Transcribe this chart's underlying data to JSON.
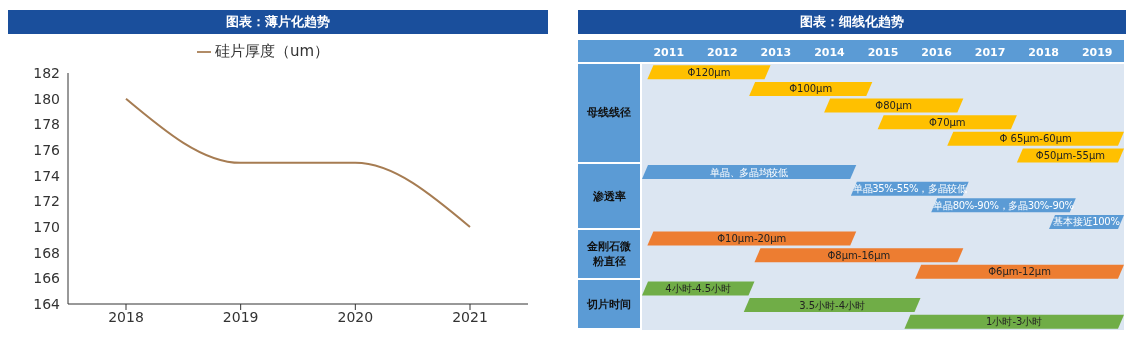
{
  "chart_data": [
    {
      "type": "line",
      "title": "图表：薄片化趋势",
      "categories": [
        "2018",
        "2019",
        "2020",
        "2021"
      ],
      "series": [
        {
          "name": "硅片厚度（um）",
          "color": "#a67c52",
          "values": [
            180,
            175,
            175,
            170
          ]
        }
      ],
      "ylim": [
        164,
        182
      ],
      "yticks": [
        164,
        166,
        168,
        170,
        172,
        174,
        176,
        178,
        180,
        182
      ],
      "legend": "top",
      "marker": "none",
      "line_style": "solid"
    },
    {
      "type": "bar",
      "title": "图表：细线化趋势",
      "orientation": "horizontal",
      "categories": [
        "Φ120μm",
        "Φ100μm",
        "Φ80μm",
        "Φ70μm",
        "Φ 65μm-60μm",
        "Φ50μm-55μm",
        "单晶、多晶均较低",
        "单晶35%-55%，多晶较低",
        "单晶80%-90%，多晶30%-90%",
        "基本接近100%",
        "Φ10μm-20μm",
        "Φ8μm-16μm",
        "Φ6μm-12μm",
        "4小时-4.5小时",
        "3.5小时-4小时",
        "1小时-3小时"
      ],
      "base": [
        2011.1,
        2013.0,
        2014.4,
        2015.4,
        2016.7,
        2018.0,
        2011.0,
        2014.9,
        2016.4,
        2018.6,
        2011.1,
        2013.1,
        2016.1,
        2011.0,
        2012.9,
        2015.9
      ],
      "values": [
        2.3,
        2.3,
        2.6,
        2.6,
        3.3,
        2.0,
        4.0,
        2.2,
        2.7,
        1.4,
        3.9,
        3.9,
        3.9,
        2.1,
        3.3,
        4.1
      ],
      "colors": [
        "#ffc000",
        "#ffc000",
        "#ffc000",
        "#ffc000",
        "#ffc000",
        "#ffc000",
        "#5b9bd5",
        "#5b9bd5",
        "#5b9bd5",
        "#5b9bd5",
        "#ed7d31",
        "#ed7d31",
        "#ed7d31",
        "#70ad47",
        "#70ad47",
        "#70ad47"
      ],
      "xlim": [
        2011,
        2020
      ],
      "xticks": [
        {
          "value": 2011.5,
          "label": "2011"
        },
        {
          "value": 2012.5,
          "label": "2012"
        },
        {
          "value": 2013.5,
          "label": "2013"
        },
        {
          "value": 2014.5,
          "label": "2014"
        },
        {
          "value": 2015.5,
          "label": "2015"
        },
        {
          "value": 2016.5,
          "label": "2016"
        },
        {
          "value": 2017.5,
          "label": "2017"
        },
        {
          "value": 2018.5,
          "label": "2018"
        },
        {
          "value": 2019.5,
          "label": "2019"
        }
      ],
      "annotations": [
        "母线线径",
        "渗透率",
        "金刚石微粉直径",
        "切片时间"
      ]
    }
  ]
}
